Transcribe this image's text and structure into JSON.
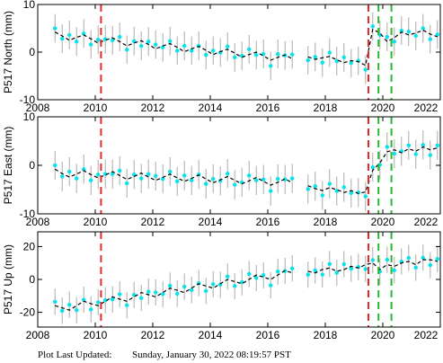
{
  "chart_data": [
    {
      "type": "scatter",
      "y_label": "P517 North (mm)",
      "xlim": [
        2008,
        2022
      ],
      "xticks": [
        2008,
        2010,
        2012,
        2014,
        2016,
        2018,
        2020,
        2022
      ],
      "ylim": [
        -10,
        10
      ],
      "yticks": [
        -10,
        0,
        10
      ],
      "x": [
        2008.6,
        2008.85,
        2009.1,
        2009.35,
        2009.6,
        2009.85,
        2010.1,
        2010.35,
        2010.6,
        2010.85,
        2011.1,
        2011.35,
        2011.6,
        2011.85,
        2012.1,
        2012.35,
        2012.6,
        2012.85,
        2013.1,
        2013.35,
        2013.6,
        2013.85,
        2014.1,
        2014.35,
        2014.6,
        2014.85,
        2015.1,
        2015.35,
        2015.6,
        2015.85,
        2016.1,
        2016.35,
        2016.6,
        2016.85,
        2017.1,
        2017.4,
        2017.65,
        2017.9,
        2018.15,
        2018.4,
        2018.65,
        2018.9,
        2019.15,
        2019.4,
        2019.65,
        2019.9,
        2020.15,
        2020.4,
        2020.65,
        2020.9,
        2021.15,
        2021.4,
        2021.65,
        2021.9
      ],
      "series": [
        {
          "style": "points",
          "color": "#00e5ee",
          "error": 3,
          "error_color": "#aaaaaa",
          "values": [
            5.0,
            2.8,
            3.6,
            2.2,
            3.9,
            1.6,
            2.6,
            2.7,
            2.5,
            3.2,
            0.5,
            2.3,
            1.3,
            2.2,
            1.6,
            1.0,
            2.3,
            0.3,
            1.3,
            0.3,
            1.3,
            -0.6,
            0.3,
            -0.1,
            1.2,
            -1.1,
            -0.8,
            0.6,
            -0.6,
            -0.4,
            -2.9,
            -0.4,
            -0.7,
            -0.5,
            null,
            -1.7,
            -1.0,
            -2.2,
            -0.1,
            -1.9,
            -1.1,
            -2.3,
            -1.8,
            -3.7,
            5.4,
            3.6,
            3.2,
            2.2,
            4.5,
            4.3,
            3.4,
            5.0,
            2.7,
            3.7
          ]
        },
        {
          "style": "dashed",
          "color": "#000000",
          "values": [
            4.2,
            3.4,
            2.5,
            3.1,
            3.6,
            2.8,
            1.9,
            2.5,
            3.0,
            2.2,
            1.3,
            1.9,
            2.4,
            1.6,
            0.7,
            1.3,
            1.8,
            1.0,
            0.1,
            0.7,
            1.2,
            0.4,
            -0.5,
            0.1,
            0.6,
            -0.2,
            -1.1,
            -0.5,
            0,
            -0.8,
            -1.7,
            -1.1,
            -0.6,
            -1.4,
            null,
            -1.0,
            -1.5,
            -1.2,
            -0.9,
            -1.6,
            -2.2,
            -1.8,
            -2.0,
            -2.8,
            4.8,
            4.0,
            2.2,
            3.0,
            4.2,
            3.6,
            4.0,
            4.6,
            3.8,
            3.2
          ]
        }
      ],
      "vlines": [
        {
          "value": 2010.2,
          "color": "#e8282b"
        },
        {
          "value": 2019.5,
          "color": "#e8282b"
        },
        {
          "value": 2019.85,
          "color": "#2db52d"
        },
        {
          "value": 2020.3,
          "color": "#2db52d"
        }
      ]
    },
    {
      "type": "scatter",
      "y_label": "P517 East (mm)",
      "xlim": [
        2008,
        2022
      ],
      "xticks": [
        2008,
        2010,
        2012,
        2014,
        2016,
        2018,
        2020,
        2022
      ],
      "ylim": [
        -10,
        10
      ],
      "yticks": [
        -10,
        0,
        10
      ],
      "x": [
        2008.6,
        2008.85,
        2009.1,
        2009.35,
        2009.6,
        2009.85,
        2010.1,
        2010.35,
        2010.6,
        2010.85,
        2011.1,
        2011.35,
        2011.6,
        2011.85,
        2012.1,
        2012.35,
        2012.6,
        2012.85,
        2013.1,
        2013.35,
        2013.6,
        2013.85,
        2014.1,
        2014.35,
        2014.6,
        2014.85,
        2015.1,
        2015.35,
        2015.6,
        2015.85,
        2016.1,
        2016.35,
        2016.6,
        2016.85,
        2017.1,
        2017.4,
        2017.65,
        2017.9,
        2018.15,
        2018.4,
        2018.65,
        2018.9,
        2019.15,
        2019.4,
        2019.65,
        2019.9,
        2020.15,
        2020.4,
        2020.65,
        2020.9,
        2021.15,
        2021.4,
        2021.65,
        2021.9
      ],
      "series": [
        {
          "style": "points",
          "color": "#00e5ee",
          "error": 3,
          "error_color": "#aaaaaa",
          "values": [
            0,
            -2.3,
            -1.3,
            -2.7,
            -0.8,
            -3.1,
            -1.9,
            -1.8,
            -1.8,
            -1.1,
            -3.7,
            -1.9,
            -2.7,
            -1.8,
            -2.2,
            -2.8,
            -1.3,
            -3.3,
            -2.1,
            -3.1,
            -1.9,
            -3.8,
            -2.8,
            -3.2,
            -1.7,
            -4.0,
            -3.5,
            -2.1,
            -3.1,
            -2.9,
            -5.3,
            -2.8,
            -2.9,
            -2.7,
            null,
            -4.9,
            -4.3,
            -6.2,
            -3.8,
            -5.3,
            -4.5,
            -5.7,
            -5.6,
            -6.4,
            -0.4,
            0.1,
            3.8,
            2.4,
            2.9,
            4.1,
            2.3,
            4.2,
            2.1,
            4.1
          ]
        },
        {
          "style": "dashed",
          "color": "#000000",
          "values": [
            -0.8,
            -1.7,
            -2.4,
            -1.8,
            -1.1,
            -1.9,
            -2.6,
            -2.0,
            -1.3,
            -2.1,
            -2.9,
            -2.3,
            -1.6,
            -2.4,
            -3.1,
            -2.5,
            -1.8,
            -2.6,
            -3.3,
            -2.7,
            -2.0,
            -2.8,
            -3.6,
            -3.0,
            -2.3,
            -3.1,
            -3.8,
            -3.2,
            -2.5,
            -3.3,
            -4.1,
            -3.5,
            -2.8,
            -3.6,
            null,
            -4.2,
            -4.8,
            -5.2,
            -4.6,
            -5.0,
            -5.6,
            -5.2,
            -5.8,
            -5.5,
            -1.0,
            0.5,
            2.8,
            3.2,
            2.6,
            3.4,
            2.9,
            3.8,
            3.2,
            3.6
          ]
        }
      ],
      "vlines": [
        {
          "value": 2010.2,
          "color": "#e8282b"
        },
        {
          "value": 2019.5,
          "color": "#e8282b"
        },
        {
          "value": 2019.85,
          "color": "#2db52d"
        },
        {
          "value": 2020.3,
          "color": "#2db52d"
        }
      ]
    },
    {
      "type": "scatter",
      "y_label": "P517 Up (mm)",
      "xlim": [
        2008,
        2022
      ],
      "xticks": [
        2008,
        2010,
        2012,
        2014,
        2016,
        2018,
        2020,
        2022
      ],
      "ylim": [
        -29,
        29
      ],
      "yticks": [
        -20,
        0,
        20
      ],
      "x": [
        2008.6,
        2008.85,
        2009.1,
        2009.35,
        2009.6,
        2009.85,
        2010.1,
        2010.35,
        2010.6,
        2010.85,
        2011.1,
        2011.35,
        2011.6,
        2011.85,
        2012.1,
        2012.35,
        2012.6,
        2012.85,
        2013.1,
        2013.35,
        2013.6,
        2013.85,
        2014.1,
        2014.35,
        2014.6,
        2014.85,
        2015.1,
        2015.35,
        2015.6,
        2015.85,
        2016.1,
        2016.35,
        2016.6,
        2016.85,
        2017.1,
        2017.4,
        2017.65,
        2017.9,
        2018.15,
        2018.4,
        2018.65,
        2018.9,
        2019.15,
        2019.4,
        2019.65,
        2019.9,
        2020.15,
        2020.4,
        2020.65,
        2020.9,
        2021.15,
        2021.4,
        2021.65,
        2021.9
      ],
      "series": [
        {
          "style": "points",
          "color": "#00e5ee",
          "error": 8,
          "error_color": "#aaaaaa",
          "values": [
            -13.6,
            -19.1,
            -15.4,
            -18.7,
            -12.4,
            -18.3,
            -13.9,
            -12.7,
            -12.1,
            -9,
            -15.7,
            -9.4,
            -11.3,
            -7.5,
            -7.9,
            -8.9,
            -3.8,
            -8.7,
            -4.4,
            -6.5,
            -2.3,
            -7,
            -2.9,
            -3.2,
            1.8,
            -4,
            -1.7,
            3.3,
            0.9,
            2.6,
            -3.6,
            4.8,
            5.1,
            6.7,
            null,
            2.9,
            5.5,
            3,
            9.4,
            4.1,
            9.3,
            6.5,
            7.6,
            6.3,
            11.8,
            4.8,
            12,
            5.6,
            10.9,
            13.1,
            7.2,
            13.2,
            8.7,
            12.5
          ]
        },
        {
          "style": "dashed",
          "color": "#000000",
          "values": [
            -16,
            -17.3,
            -18.7,
            -16,
            -13.3,
            -14.7,
            -16,
            -13.3,
            -10.6,
            -12,
            -13.3,
            -10.6,
            -8,
            -9.3,
            -10.6,
            -8,
            -5.3,
            -6.6,
            -8,
            -5.3,
            -2.6,
            -4,
            -5.3,
            -2.6,
            0,
            -1.3,
            -2.6,
            0,
            2.7,
            1.4,
            0,
            2.7,
            5.4,
            4,
            null,
            5,
            4,
            6,
            7,
            5,
            6,
            8,
            7,
            9,
            10,
            6,
            9,
            8,
            10,
            11,
            9,
            12,
            12,
            11
          ]
        }
      ],
      "vlines": [
        {
          "value": 2010.2,
          "color": "#e8282b"
        },
        {
          "value": 2019.5,
          "color": "#e8282b"
        },
        {
          "value": 2019.85,
          "color": "#2db52d"
        },
        {
          "value": 2020.3,
          "color": "#2db52d"
        }
      ]
    }
  ],
  "footer": {
    "label": "Plot Last Updated:",
    "timestamp": "Sunday, January 30, 2022 08:19:57 PST"
  }
}
